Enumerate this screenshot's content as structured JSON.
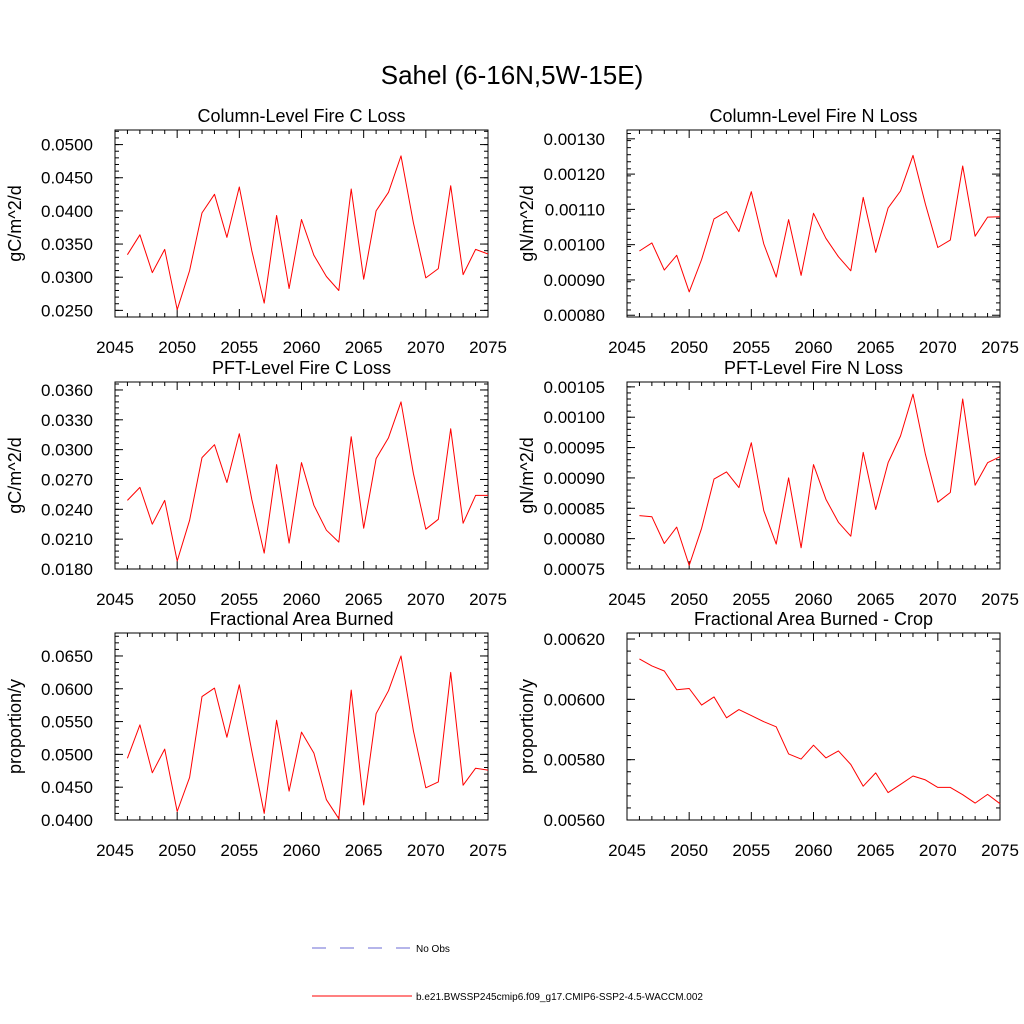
{
  "figure": {
    "title": "Sahel (6-16N,5W-15E)"
  },
  "legend": {
    "obs_label": "No Obs",
    "obs_color": "#6b6bd6",
    "model_label": "b.e21.BWSSP245cmip6.f09_g17.CMIP6-SSP2-4.5-WACCM.002",
    "model_color": "#ff0000"
  },
  "chart_data": [
    {
      "type": "line",
      "title": "Column-Level Fire C Loss",
      "xlabel": "",
      "ylabel": "gC/m^2/d",
      "xlim": [
        2045,
        2075
      ],
      "ylim": [
        0.024,
        0.0522
      ],
      "xticks": [
        2045,
        2050,
        2055,
        2060,
        2065,
        2070,
        2075
      ],
      "yticks": [
        0.025,
        0.03,
        0.035,
        0.04,
        0.045,
        0.05
      ],
      "ytick_labels": [
        "0.0250",
        "0.0300",
        "0.0350",
        "0.0400",
        "0.0450",
        "0.0500"
      ],
      "yminor": 0.001,
      "x": [
        2046,
        2047,
        2048,
        2049,
        2050,
        2051,
        2052,
        2053,
        2054,
        2055,
        2056,
        2057,
        2058,
        2059,
        2060,
        2061,
        2062,
        2063,
        2064,
        2065,
        2066,
        2067,
        2068,
        2069,
        2070,
        2071,
        2072,
        2073,
        2074,
        2075
      ],
      "series": [
        {
          "name": "b.e21.BWSSP245cmip6.f09_g17.CMIP6-SSP2-4.5-WACCM.002",
          "values": [
            0.0334,
            0.0364,
            0.0307,
            0.0342,
            0.0251,
            0.031,
            0.0397,
            0.0425,
            0.036,
            0.0436,
            0.034,
            0.0261,
            0.0393,
            0.0283,
            0.0387,
            0.0333,
            0.0301,
            0.028,
            0.0433,
            0.0297,
            0.04,
            0.0428,
            0.0483,
            0.0382,
            0.0299,
            0.0313,
            0.0438,
            0.0304,
            0.0342,
            0.0335
          ]
        }
      ]
    },
    {
      "type": "line",
      "title": "Column-Level Fire N Loss",
      "xlabel": "",
      "ylabel": "gN/m^2/d",
      "xlim": [
        2045,
        2075
      ],
      "ylim": [
        0.000795,
        0.001325
      ],
      "xticks": [
        2045,
        2050,
        2055,
        2060,
        2065,
        2070,
        2075
      ],
      "yticks": [
        0.0008,
        0.0009,
        0.001,
        0.0011,
        0.0012,
        0.0013
      ],
      "ytick_labels": [
        "0.00080",
        "0.00090",
        "0.00100",
        "0.00110",
        "0.00120",
        "0.00130"
      ],
      "yminor": 2e-05,
      "x": [
        2046,
        2047,
        2048,
        2049,
        2050,
        2051,
        2052,
        2053,
        2054,
        2055,
        2056,
        2057,
        2058,
        2059,
        2060,
        2061,
        2062,
        2063,
        2064,
        2065,
        2066,
        2067,
        2068,
        2069,
        2070,
        2071,
        2072,
        2073,
        2074,
        2075
      ],
      "series": [
        {
          "name": "b.e21.BWSSP245cmip6.f09_g17.CMIP6-SSP2-4.5-WACCM.002",
          "values": [
            0.000982,
            0.001005,
            0.000928,
            0.00097,
            0.000866,
            0.000958,
            0.001073,
            0.001094,
            0.001037,
            0.00115,
            0.001002,
            0.000908,
            0.001071,
            0.000913,
            0.001089,
            0.001018,
            0.000966,
            0.000926,
            0.001134,
            0.000978,
            0.001104,
            0.001152,
            0.001253,
            0.001115,
            0.000992,
            0.001013,
            0.001223,
            0.001024,
            0.001078,
            0.001079
          ]
        }
      ]
    },
    {
      "type": "line",
      "title": "PFT-Level Fire C Loss",
      "xlabel": "",
      "ylabel": "gC/m^2/d",
      "xlim": [
        2045,
        2075
      ],
      "ylim": [
        0.018,
        0.0368
      ],
      "xticks": [
        2045,
        2050,
        2055,
        2060,
        2065,
        2070,
        2075
      ],
      "yticks": [
        0.018,
        0.021,
        0.024,
        0.027,
        0.03,
        0.033,
        0.036
      ],
      "ytick_labels": [
        "0.0180",
        "0.0210",
        "0.0240",
        "0.0270",
        "0.0300",
        "0.0330",
        "0.0360"
      ],
      "yminor": 0.0006,
      "x": [
        2046,
        2047,
        2048,
        2049,
        2050,
        2051,
        2052,
        2053,
        2054,
        2055,
        2056,
        2057,
        2058,
        2059,
        2060,
        2061,
        2062,
        2063,
        2064,
        2065,
        2066,
        2067,
        2068,
        2069,
        2070,
        2071,
        2072,
        2073,
        2074,
        2075
      ],
      "series": [
        {
          "name": "b.e21.BWSSP245cmip6.f09_g17.CMIP6-SSP2-4.5-WACCM.002",
          "values": [
            0.0249,
            0.0262,
            0.0225,
            0.0249,
            0.0188,
            0.0229,
            0.0292,
            0.0305,
            0.0267,
            0.0316,
            0.025,
            0.0196,
            0.0285,
            0.0206,
            0.0287,
            0.0244,
            0.0219,
            0.0207,
            0.0313,
            0.0221,
            0.0291,
            0.0312,
            0.0348,
            0.0276,
            0.022,
            0.023,
            0.0321,
            0.0226,
            0.0254,
            0.0254
          ]
        }
      ]
    },
    {
      "type": "line",
      "title": "PFT-Level Fire N Loss",
      "xlabel": "",
      "ylabel": "gN/m^2/d",
      "xlim": [
        2045,
        2075
      ],
      "ylim": [
        0.00075,
        0.001058
      ],
      "xticks": [
        2045,
        2050,
        2055,
        2060,
        2065,
        2070,
        2075
      ],
      "yticks": [
        0.00075,
        0.0008,
        0.00085,
        0.0009,
        0.00095,
        0.001,
        0.00105
      ],
      "ytick_labels": [
        "0.00075",
        "0.00080",
        "0.00085",
        "0.00090",
        "0.00095",
        "0.00100",
        "0.00105"
      ],
      "yminor": 1e-05,
      "x": [
        2046,
        2047,
        2048,
        2049,
        2050,
        2051,
        2052,
        2053,
        2054,
        2055,
        2056,
        2057,
        2058,
        2059,
        2060,
        2061,
        2062,
        2063,
        2064,
        2065,
        2066,
        2067,
        2068,
        2069,
        2070,
        2071,
        2072,
        2073,
        2074,
        2075
      ],
      "series": [
        {
          "name": "b.e21.BWSSP245cmip6.f09_g17.CMIP6-SSP2-4.5-WACCM.002",
          "values": [
            0.000838,
            0.000836,
            0.000792,
            0.000819,
            0.000756,
            0.000817,
            0.000898,
            0.00091,
            0.000884,
            0.000958,
            0.000846,
            0.000791,
            0.0009,
            0.000785,
            0.000922,
            0.000865,
            0.000827,
            0.000804,
            0.000942,
            0.000848,
            0.000925,
            0.000969,
            0.001038,
            0.000939,
            0.00086,
            0.000876,
            0.00103,
            0.000888,
            0.000925,
            0.000935
          ]
        }
      ]
    },
    {
      "type": "line",
      "title": "Fractional Area Burned",
      "xlabel": "",
      "ylabel": "proportion/y",
      "xlim": [
        2045,
        2075
      ],
      "ylim": [
        0.04,
        0.0685
      ],
      "xticks": [
        2045,
        2050,
        2055,
        2060,
        2065,
        2070,
        2075
      ],
      "yticks": [
        0.04,
        0.045,
        0.05,
        0.055,
        0.06,
        0.065
      ],
      "ytick_labels": [
        "0.0400",
        "0.0450",
        "0.0500",
        "0.0550",
        "0.0600",
        "0.0650"
      ],
      "yminor": 0.001,
      "x": [
        2046,
        2047,
        2048,
        2049,
        2050,
        2051,
        2052,
        2053,
        2054,
        2055,
        2056,
        2057,
        2058,
        2059,
        2060,
        2061,
        2062,
        2063,
        2064,
        2065,
        2066,
        2067,
        2068,
        2069,
        2070,
        2071,
        2072,
        2073,
        2074,
        2075
      ],
      "series": [
        {
          "name": "b.e21.BWSSP245cmip6.f09_g17.CMIP6-SSP2-4.5-WACCM.002",
          "values": [
            0.0494,
            0.0545,
            0.0472,
            0.0508,
            0.0413,
            0.0465,
            0.0588,
            0.0601,
            0.0526,
            0.0606,
            0.0505,
            0.041,
            0.0552,
            0.0444,
            0.0534,
            0.0502,
            0.0431,
            0.0402,
            0.0598,
            0.0423,
            0.0562,
            0.0597,
            0.065,
            0.0536,
            0.0449,
            0.0458,
            0.0625,
            0.0453,
            0.0479,
            0.0476
          ]
        }
      ]
    },
    {
      "type": "line",
      "title": "Fractional Area Burned - Crop",
      "xlabel": "",
      "ylabel": "proportion/y",
      "xlim": [
        2045,
        2075
      ],
      "ylim": [
        0.0056,
        0.00622
      ],
      "xticks": [
        2045,
        2050,
        2055,
        2060,
        2065,
        2070,
        2075
      ],
      "yticks": [
        0.0056,
        0.0058,
        0.006,
        0.0062
      ],
      "ytick_labels": [
        "0.00560",
        "0.00580",
        "0.00600",
        "0.00620"
      ],
      "yminor": 4e-05,
      "x": [
        2046,
        2047,
        2048,
        2049,
        2050,
        2051,
        2052,
        2053,
        2054,
        2055,
        2056,
        2057,
        2058,
        2059,
        2060,
        2061,
        2062,
        2063,
        2064,
        2065,
        2066,
        2067,
        2068,
        2069,
        2070,
        2071,
        2072,
        2073,
        2074,
        2075
      ],
      "series": [
        {
          "name": "b.e21.BWSSP245cmip6.f09_g17.CMIP6-SSP2-4.5-WACCM.002",
          "values": [
            0.006134,
            0.006111,
            0.006094,
            0.006032,
            0.006036,
            0.005981,
            0.006008,
            0.005939,
            0.005966,
            0.005946,
            0.005926,
            0.005909,
            0.005819,
            0.005802,
            0.005848,
            0.005806,
            0.005829,
            0.005784,
            0.005712,
            0.005756,
            0.005691,
            0.005718,
            0.005746,
            0.005733,
            0.005708,
            0.005708,
            0.005684,
            0.005656,
            0.005685,
            0.005654
          ]
        }
      ]
    }
  ]
}
